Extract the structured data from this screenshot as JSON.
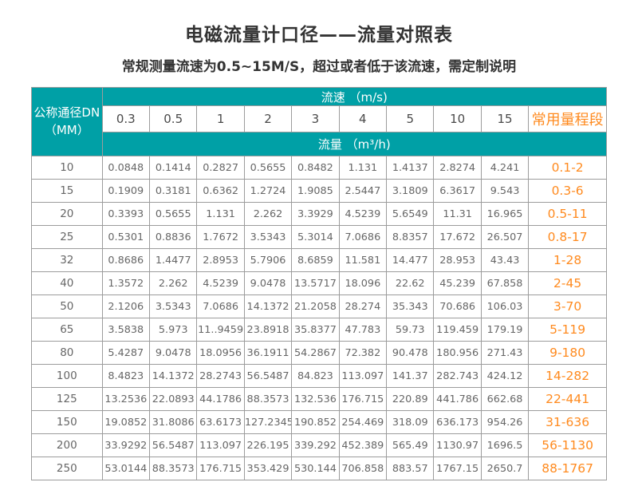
{
  "colors": {
    "teal": "#00A0A6",
    "orange": "#FF8A1E"
  },
  "chart_data": {
    "type": "table",
    "title": "电磁流量计口径——流量对照表",
    "subtitle": "常规测量流速为0.5~15M/S，超过或者低于该流速，需定制说明",
    "corner_header": {
      "line1": "公称通径DN",
      "line2": "（MM）"
    },
    "velocity_group_label": "流速 （m/s)",
    "flow_group_label": "流量 （m³/h)",
    "range_column_label": "常用量程段",
    "velocity_columns": [
      "0.3",
      "0.5",
      "1",
      "2",
      "3",
      "4",
      "5",
      "10",
      "15"
    ],
    "rows": [
      {
        "dn": "10",
        "values": [
          "0.0848",
          "0.1414",
          "0.2827",
          "0.5655",
          "0.8482",
          "1.131",
          "1.4137",
          "2.8274",
          "4.241"
        ],
        "range": "0.1-2"
      },
      {
        "dn": "15",
        "values": [
          "0.1909",
          "0.3181",
          "0.6362",
          "1.2724",
          "1.9085",
          "2.5447",
          "3.1809",
          "6.3617",
          "9.543"
        ],
        "range": "0.3-6"
      },
      {
        "dn": "20",
        "values": [
          "0.3393",
          "0.5655",
          "1.131",
          "2.262",
          "3.3929",
          "4.5239",
          "5.6549",
          "11.31",
          "16.965"
        ],
        "range": "0.5-11"
      },
      {
        "dn": "25",
        "values": [
          "0.5301",
          "0.8836",
          "1.7672",
          "3.5343",
          "5.3014",
          "7.0686",
          "8.8357",
          "17.672",
          "26.507"
        ],
        "range": "0.8-17"
      },
      {
        "dn": "32",
        "values": [
          "0.8686",
          "1.4477",
          "2.8953",
          "5.7906",
          "8.6859",
          "11.581",
          "14.477",
          "28.953",
          "43.43"
        ],
        "range": "1-28"
      },
      {
        "dn": "40",
        "values": [
          "1.3572",
          "2.262",
          "4.5239",
          "9.0478",
          "13.5717",
          "18.096",
          "22.62",
          "45.239",
          "67.858"
        ],
        "range": "2-45"
      },
      {
        "dn": "50",
        "values": [
          "2.1206",
          "3.5343",
          "7.0686",
          "14.1372",
          "21.2058",
          "28.274",
          "35.343",
          "70.686",
          "106.03"
        ],
        "range": "3-70"
      },
      {
        "dn": "65",
        "values": [
          "3.5838",
          "5.973",
          "11..9459",
          "23.8918",
          "35.8377",
          "47.783",
          "59.73",
          "119.459",
          "179.19"
        ],
        "range": "5-119"
      },
      {
        "dn": "80",
        "values": [
          "5.4287",
          "9.0478",
          "18.0956",
          "36.1911",
          "54.2867",
          "72.382",
          "90.478",
          "180.956",
          "271.43"
        ],
        "range": "9-180"
      },
      {
        "dn": "100",
        "values": [
          "8.4823",
          "14.1372",
          "28.2743",
          "56.5487",
          "84.823",
          "113.097",
          "141.37",
          "282.743",
          "424.12"
        ],
        "range": "14-282"
      },
      {
        "dn": "125",
        "values": [
          "13.2536",
          "22.0893",
          "44.1786",
          "88.3573",
          "132.536",
          "176.715",
          "220.89",
          "441.786",
          "662.68"
        ],
        "range": "22-441"
      },
      {
        "dn": "150",
        "values": [
          "19.0852",
          "31.8086",
          "63.6173",
          "127.2345",
          "190.852",
          "254.469",
          "318.09",
          "636.173",
          "954.26"
        ],
        "range": "31-636"
      },
      {
        "dn": "200",
        "values": [
          "33.9292",
          "56.5487",
          "113.097",
          "226.195",
          "339.292",
          "452.389",
          "565.49",
          "1130.97",
          "1696.5"
        ],
        "range": "56-1130"
      },
      {
        "dn": "250",
        "values": [
          "53.0144",
          "88.3573",
          "176.715",
          "353.429",
          "530.144",
          "706.858",
          "883.57",
          "1767.15",
          "2650.7"
        ],
        "range": "88-1767"
      }
    ]
  }
}
